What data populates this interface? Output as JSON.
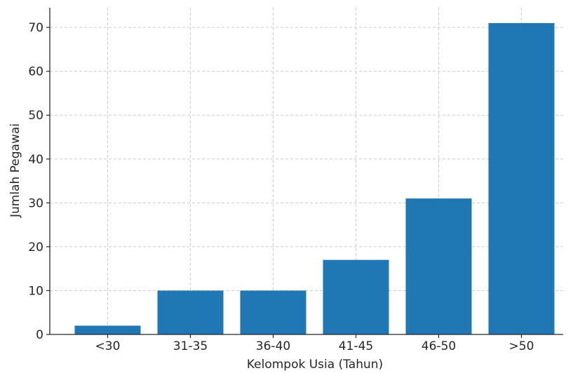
{
  "chart_data": {
    "type": "bar",
    "title": "",
    "xlabel": "Kelompok Usia (Tahun)",
    "ylabel": "Jumlah Pegawai",
    "categories": [
      "<30",
      "31-35",
      "36-40",
      "41-45",
      "46-50",
      ">50"
    ],
    "values": [
      2,
      10,
      10,
      17,
      31,
      71
    ],
    "ylim": [
      0,
      74.5
    ],
    "yticks": [
      0,
      10,
      20,
      30,
      40,
      50,
      60,
      70
    ],
    "grid": true,
    "bar_color": "#1f77b4",
    "grid_color": "#cccccc",
    "axis_color": "#262626"
  }
}
